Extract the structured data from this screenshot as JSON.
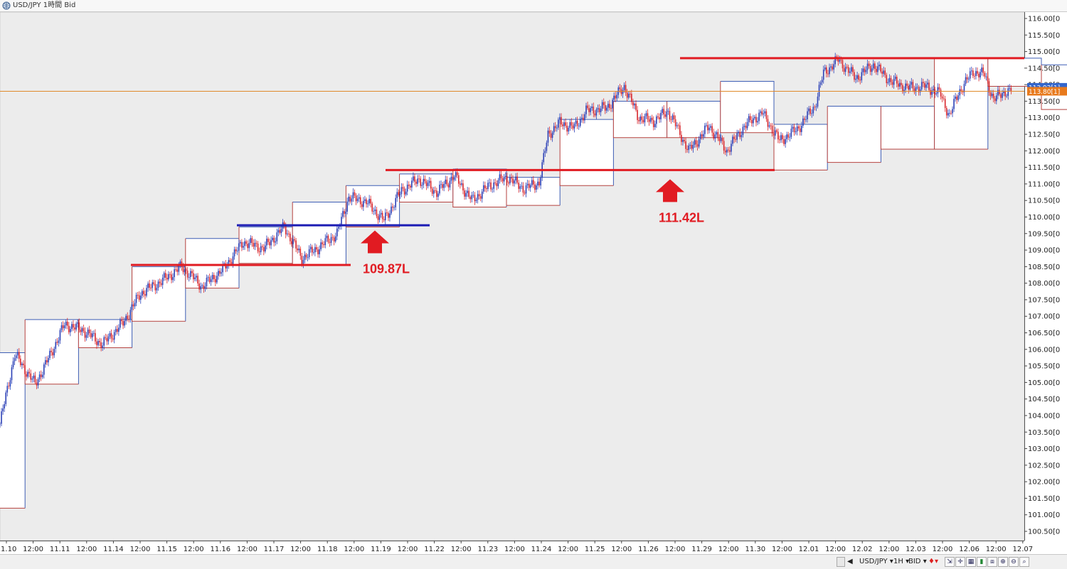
{
  "window": {
    "title": "USD/JPY 1時間 Bid",
    "icon": "globe-icon"
  },
  "chart_data": {
    "type": "candlestick",
    "symbol": "USD/JPY",
    "timeframe": "1H",
    "price_type": "BID",
    "y_axis": {
      "min": 100.5,
      "max": 116.0,
      "tick_labels": [
        "116.00[0",
        "115.50[0",
        "115.00[0",
        "114.50[0",
        "114.00[0",
        "113.50[0",
        "113.00[0",
        "112.50[0",
        "112.00[0",
        "111.50[0",
        "111.00[0",
        "110.50[0",
        "110.00[0",
        "109.50[0",
        "109.00[0",
        "108.50[0",
        "108.00[0",
        "107.50[0",
        "107.00[0",
        "106.50[0",
        "106.00[0",
        "105.50[0",
        "105.00[0",
        "104.50[0",
        "104.00[0",
        "103.50[0",
        "103.00[0",
        "102.50[0",
        "102.00[0",
        "101.50[0",
        "101.00[0",
        "100.50[0"
      ]
    },
    "x_axis": {
      "tick_labels": [
        "11.10",
        "12:00",
        "11.11",
        "12:00",
        "11.14",
        "12:00",
        "11.15",
        "12:00",
        "11.16",
        "12:00",
        "11.17",
        "12:00",
        "11.18",
        "12:00",
        "11.19",
        "12:00",
        "11.22",
        "12:00",
        "11.23",
        "12:00",
        "11.24",
        "12:00",
        "11.25",
        "12:00",
        "11.26",
        "12:00",
        "11.29",
        "12:00",
        "11.30",
        "12:00",
        "12.01",
        "12:00",
        "12.02",
        "12:00",
        "12.03",
        "12:00",
        "12.06",
        "12:00",
        "12.07"
      ]
    },
    "price_markers": [
      {
        "label": "113.92[1]",
        "color": "#3366cc"
      },
      {
        "label": "113.80[1]",
        "color": "#e87a1c"
      }
    ],
    "current_price": 113.8,
    "daily_boxes": [
      {
        "high": 105.9,
        "low": 101.2
      },
      {
        "high": 106.9,
        "low": 104.95
      },
      {
        "high": 106.9,
        "low": 106.05
      },
      {
        "high": 108.5,
        "low": 106.85
      },
      {
        "high": 109.35,
        "low": 107.85
      },
      {
        "high": 109.7,
        "low": 108.6
      },
      {
        "high": 110.45,
        "low": 108.55
      },
      {
        "high": 110.95,
        "low": 109.7
      },
      {
        "high": 111.3,
        "low": 110.45
      },
      {
        "high": 111.45,
        "low": 110.3
      },
      {
        "high": 111.2,
        "low": 110.35
      },
      {
        "high": 112.95,
        "low": 110.95
      },
      {
        "high": 113.5,
        "low": 112.4
      },
      {
        "high": 113.5,
        "low": 112.4
      },
      {
        "high": 114.1,
        "low": 112.55
      },
      {
        "high": 112.8,
        "low": 111.42
      },
      {
        "high": 113.35,
        "low": 111.65
      },
      {
        "high": 113.35,
        "low": 112.05
      },
      {
        "high": 114.8,
        "low": 112.05
      },
      {
        "high": 114.8,
        "low": 113.95
      },
      {
        "high": 114.6,
        "low": 113.25
      },
      {
        "high": 114.6,
        "low": 112.95
      },
      {
        "high": 114.8,
        "low": 113.15
      },
      {
        "high": 113.92,
        "low": 113.4
      }
    ],
    "horizontal_lines": [
      {
        "price": 108.55,
        "color": "#e11b22",
        "x_from": "11.14 12:00",
        "x_to": "11.18 12:00"
      },
      {
        "price": 109.75,
        "color": "#1c1cb4",
        "x_from": "11.16 12:00",
        "x_to": "11.19 12:00"
      },
      {
        "price": 111.42,
        "color": "#e11b22",
        "x_from": "11.19 12:00",
        "x_to": "11.30 12:00"
      },
      {
        "price": 114.8,
        "color": "#e11b22",
        "x_from": "11.26 12:00",
        "x_to": "12.07 12:00"
      }
    ],
    "annotations": [
      {
        "text": "109.87L",
        "price": 109.87,
        "color": "#e11b22"
      },
      {
        "text": "111.42L",
        "price": 111.42,
        "color": "#e11b22"
      }
    ],
    "candle_keyframes": [
      [
        0,
        103.75
      ],
      [
        10,
        105.85
      ],
      [
        24,
        104.95
      ],
      [
        34,
        105.8
      ],
      [
        44,
        106.75
      ],
      [
        56,
        106.6
      ],
      [
        70,
        106.15
      ],
      [
        84,
        106.8
      ],
      [
        96,
        107.7
      ],
      [
        110,
        108.05
      ],
      [
        124,
        108.5
      ],
      [
        138,
        107.9
      ],
      [
        152,
        108.4
      ],
      [
        166,
        109.25
      ],
      [
        180,
        109.05
      ],
      [
        194,
        109.7
      ],
      [
        206,
        108.75
      ],
      [
        218,
        109.1
      ],
      [
        230,
        109.5
      ],
      [
        238,
        110.6
      ],
      [
        250,
        110.45
      ],
      [
        262,
        109.9
      ],
      [
        274,
        110.8
      ],
      [
        286,
        111.15
      ],
      [
        298,
        110.75
      ],
      [
        310,
        111.25
      ],
      [
        322,
        110.5
      ],
      [
        334,
        110.95
      ],
      [
        346,
        111.2
      ],
      [
        358,
        110.85
      ],
      [
        368,
        111.05
      ],
      [
        374,
        112.5
      ],
      [
        382,
        112.85
      ],
      [
        392,
        112.7
      ],
      [
        400,
        113.2
      ],
      [
        414,
        113.3
      ],
      [
        426,
        113.95
      ],
      [
        436,
        113.0
      ],
      [
        446,
        112.9
      ],
      [
        456,
        113.2
      ],
      [
        462,
        112.7
      ],
      [
        470,
        112.0
      ],
      [
        484,
        112.75
      ],
      [
        496,
        112.0
      ],
      [
        508,
        112.75
      ],
      [
        520,
        113.15
      ],
      [
        532,
        112.3
      ],
      [
        544,
        112.65
      ],
      [
        556,
        113.35
      ],
      [
        562,
        114.35
      ],
      [
        572,
        114.75
      ],
      [
        584,
        114.2
      ],
      [
        596,
        114.6
      ],
      [
        608,
        114.1
      ],
      [
        620,
        113.9
      ],
      [
        632,
        113.95
      ],
      [
        642,
        113.7
      ],
      [
        648,
        113.05
      ],
      [
        654,
        113.75
      ],
      [
        664,
        114.4
      ],
      [
        672,
        114.3
      ],
      [
        678,
        113.55
      ],
      [
        686,
        113.8
      ],
      [
        690,
        113.8
      ]
    ]
  },
  "statusbar": {
    "symbol_label": "USD/JPY",
    "timeframe_label": "1H",
    "price_type_label": "BID"
  }
}
